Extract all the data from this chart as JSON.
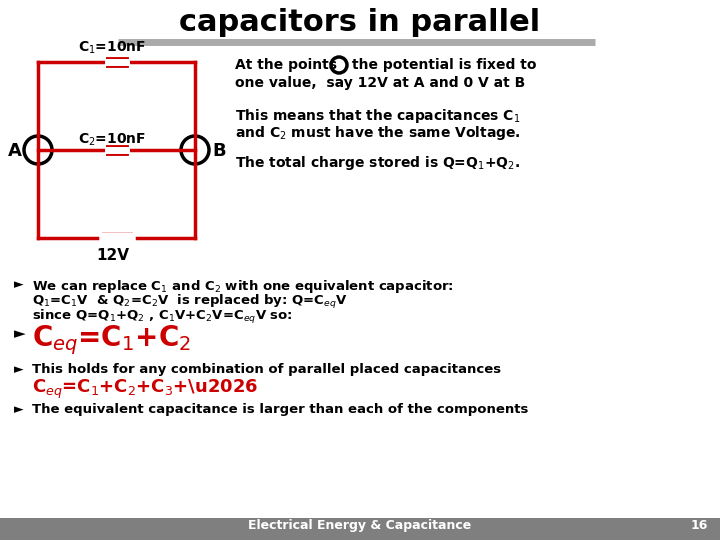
{
  "title": "capacitors in parallel",
  "bg_color": "#ffffff",
  "circuit_color": "#cc0000",
  "text_color": "#000000",
  "red_color": "#cc0000",
  "footer_bg": "#7f7f7f",
  "footer_text": "Electrical Energy & Capacitance",
  "footer_page": "16",
  "fig_w": 7.2,
  "fig_h": 5.4,
  "dpi": 100
}
